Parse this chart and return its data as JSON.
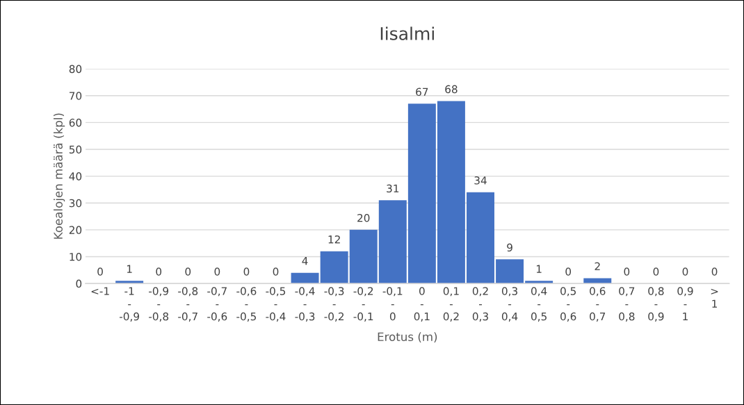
{
  "chart_data": {
    "type": "bar",
    "title": "Iisalmi",
    "xlabel": "Erotus (m)",
    "ylabel": "Koealojen määrä (kpl)",
    "categories": [
      "<-1",
      "-1 - -0,9",
      "-0,9 - -0,8",
      "-0,8 - -0,7",
      "-0,7 - -0,6",
      "-0,6 - -0,5",
      "-0,5 - -0,4",
      "-0,4 - -0,3",
      "-0,3 - -0,2",
      "-0,2 - -0,1",
      "-0,1 - 0",
      "0 - 0,1",
      "0,1 - 0,2",
      "0,2 - 0,3",
      "0,3 - 0,4",
      "0,4 - 0,5",
      "0,5 - 0,6",
      "0,6 - 0,7",
      "0,7 - 0,8",
      "0,8 - 0,9",
      "0,9 - 1",
      "> 1"
    ],
    "values": [
      0,
      1,
      0,
      0,
      0,
      0,
      0,
      4,
      12,
      20,
      31,
      67,
      68,
      34,
      9,
      1,
      0,
      2,
      0,
      0,
      0,
      0
    ],
    "color": "#4472c4",
    "ylim": [
      0,
      80
    ],
    "yticks": [
      0,
      10,
      20,
      30,
      40,
      50,
      60,
      70,
      80
    ],
    "grid": "y",
    "data_labels": true
  }
}
